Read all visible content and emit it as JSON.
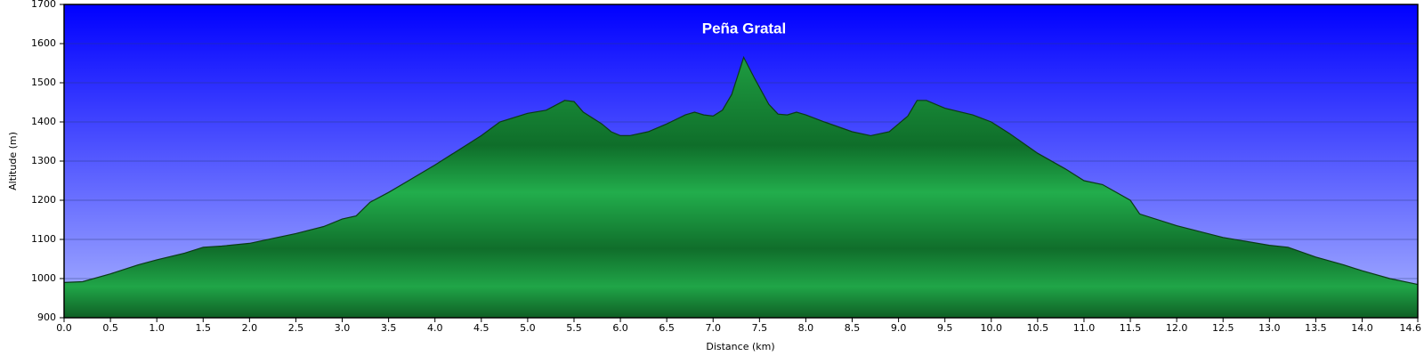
{
  "chart_data": {
    "type": "area",
    "title": "Peña Gratal",
    "xlabel": "Distance   (km)",
    "ylabel": "Altitude (m)",
    "x": [
      0,
      0.2,
      0.5,
      0.8,
      1.0,
      1.3,
      1.5,
      1.7,
      2.0,
      2.3,
      2.5,
      2.8,
      3.0,
      3.15,
      3.3,
      3.5,
      3.7,
      4.0,
      4.2,
      4.5,
      4.7,
      5.0,
      5.2,
      5.4,
      5.5,
      5.6,
      5.8,
      5.9,
      6.0,
      6.1,
      6.3,
      6.5,
      6.7,
      6.8,
      6.9,
      7.0,
      7.1,
      7.2,
      7.33,
      7.45,
      7.6,
      7.7,
      7.8,
      7.9,
      8.0,
      8.2,
      8.5,
      8.7,
      8.9,
      9.0,
      9.1,
      9.2,
      9.3,
      9.5,
      9.8,
      10.0,
      10.2,
      10.5,
      10.8,
      11.0,
      11.2,
      11.5,
      11.6,
      12.0,
      12.5,
      13.0,
      13.2,
      13.5,
      13.8,
      14.0,
      14.3,
      14.6
    ],
    "values": [
      990,
      992,
      1012,
      1035,
      1048,
      1065,
      1080,
      1083,
      1090,
      1105,
      1115,
      1133,
      1152,
      1160,
      1195,
      1220,
      1248,
      1290,
      1320,
      1365,
      1400,
      1422,
      1430,
      1455,
      1452,
      1425,
      1395,
      1375,
      1365,
      1365,
      1375,
      1395,
      1418,
      1425,
      1418,
      1415,
      1430,
      1470,
      1565,
      1510,
      1445,
      1420,
      1418,
      1425,
      1418,
      1400,
      1375,
      1365,
      1375,
      1395,
      1415,
      1455,
      1455,
      1435,
      1418,
      1400,
      1370,
      1320,
      1280,
      1250,
      1240,
      1200,
      1165,
      1135,
      1105,
      1085,
      1080,
      1055,
      1035,
      1020,
      1000,
      985
    ],
    "color": "#1fa84a",
    "xlim": [
      0,
      14.6
    ],
    "xticks": [
      {
        "value": 0,
        "label": "0.0"
      },
      0.5,
      {
        "value": 1,
        "label": "1.0"
      },
      1.5,
      {
        "value": 2,
        "label": "2.0"
      },
      2.5,
      {
        "value": 3,
        "label": "3.0"
      },
      3.5,
      {
        "value": 4,
        "label": "4.0"
      },
      4.5,
      {
        "value": 5,
        "label": "5.0"
      },
      5.5,
      {
        "value": 6,
        "label": "6.0"
      },
      6.5,
      {
        "value": 7,
        "label": "7.0"
      },
      7.5,
      {
        "value": 8,
        "label": "8.0"
      },
      8.5,
      {
        "value": 9,
        "label": "9.0"
      },
      9.5,
      {
        "value": 10,
        "label": "10.0"
      },
      10.5,
      {
        "value": 11,
        "label": "11.0"
      },
      11.5,
      {
        "value": 12,
        "label": "12.0"
      },
      12.5,
      {
        "value": 13,
        "label": "13.0"
      },
      13.5,
      {
        "value": 14,
        "label": "14.0"
      },
      14.6
    ],
    "ylim": [
      900,
      1700
    ],
    "yticks": [
      900,
      1000,
      1100,
      1200,
      1300,
      1400,
      1500,
      1600,
      1700
    ],
    "grid": true
  }
}
